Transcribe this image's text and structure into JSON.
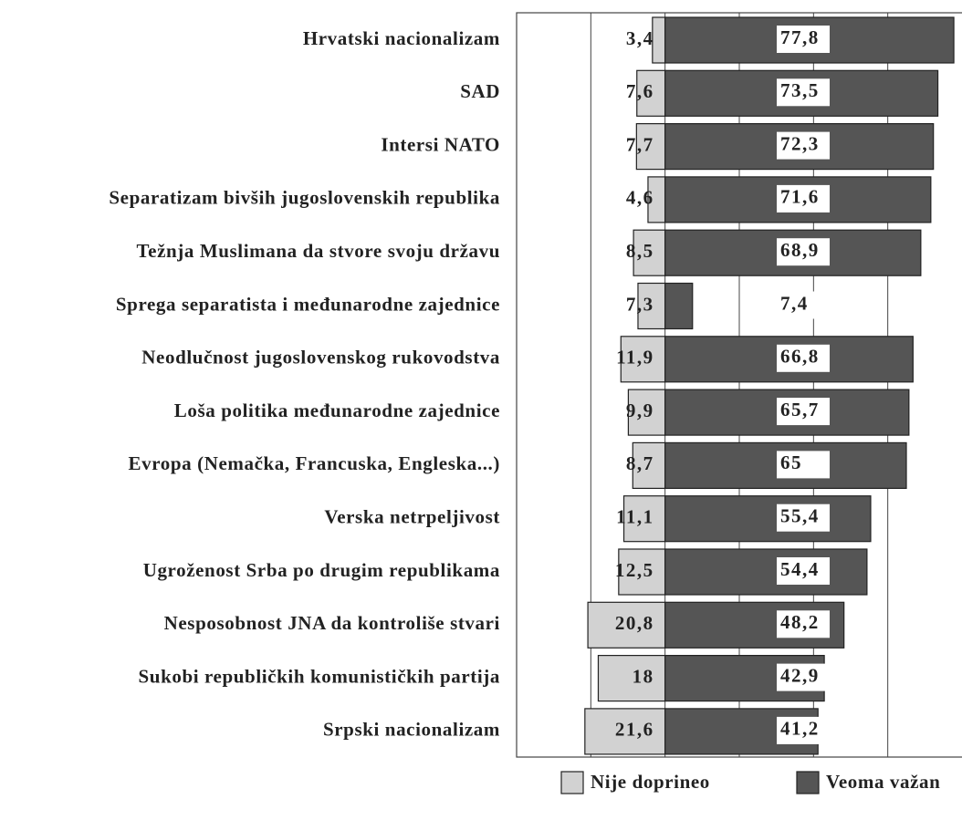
{
  "chart_data": {
    "type": "diverging-bar",
    "categories": [
      "Hrvatski nacionalizam",
      "SAD",
      "Intersi NATO",
      "Separatizam bivših jugoslovenskih republika",
      "Težnja Muslimana da stvore svoju državu",
      "Sprega separatista i međunarodne zajednice",
      "Neodlučnost jugoslovenskog rukovodstva",
      "Loša politika međunarodne zajednice",
      "Evropa (Nemačka, Francuska, Engleska...)",
      "Verska netrpeljivost",
      "Ugroženost Srba po drugim republikama",
      "Nesposobnost JNA da kontroliše stvari",
      "Sukobi republičkih komunističkih partija",
      "Srpski nacionalizam"
    ],
    "series": [
      {
        "name": "Nije doprineo",
        "color": "#d2d2d2",
        "direction": "left",
        "values": [
          3.4,
          7.6,
          7.7,
          4.6,
          8.5,
          7.3,
          11.9,
          9.9,
          8.7,
          11.1,
          12.5,
          20.8,
          18,
          21.6
        ],
        "value_labels": [
          "3,4",
          "7,6",
          "7,7",
          "4,6",
          "8,5",
          "7,3",
          "11,9",
          "9,9",
          "8,7",
          "11,1",
          "12,5",
          "20,8",
          "18",
          "21,6"
        ]
      },
      {
        "name": "Veoma važan",
        "color": "#555555",
        "direction": "right",
        "values": [
          77.8,
          73.5,
          72.3,
          71.6,
          68.9,
          7.4,
          66.8,
          65.7,
          65,
          55.4,
          54.4,
          48.2,
          42.9,
          41.2
        ],
        "value_labels": [
          "77,8",
          "73,5",
          "72,3",
          "71,6",
          "68,9",
          "7,4",
          "66,8",
          "65,7",
          "65",
          "55,4",
          "54,4",
          "48,2",
          "42,9",
          "41,2"
        ]
      }
    ],
    "xlim": [
      -40,
      80
    ],
    "xticks": [
      -20,
      0,
      20,
      40,
      60
    ],
    "grid": true,
    "legend": "bottom"
  }
}
